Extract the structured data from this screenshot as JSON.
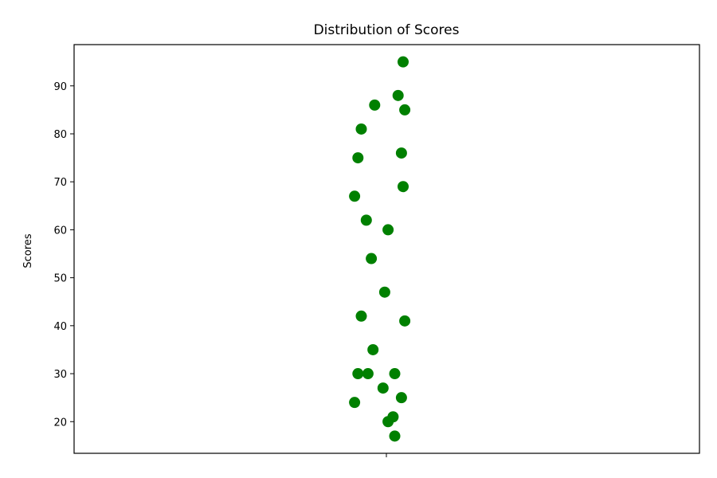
{
  "chart_data": {
    "type": "scatter",
    "title": "Distribution of Scores",
    "xlabel": "",
    "ylabel": "Scores",
    "ylim": [
      13.4,
      98.6
    ],
    "yticks": [
      20,
      30,
      40,
      50,
      60,
      70,
      80,
      90
    ],
    "x_ticks_count": 1,
    "grid": false,
    "legend": "none",
    "marker_color": "#008000",
    "points": [
      {
        "jitter": 0.1,
        "y": 95
      },
      {
        "jitter": 0.07,
        "y": 88
      },
      {
        "jitter": -0.07,
        "y": 86
      },
      {
        "jitter": 0.11,
        "y": 85
      },
      {
        "jitter": -0.15,
        "y": 81
      },
      {
        "jitter": -0.17,
        "y": 75
      },
      {
        "jitter": 0.09,
        "y": 76
      },
      {
        "jitter": 0.1,
        "y": 69
      },
      {
        "jitter": -0.19,
        "y": 67
      },
      {
        "jitter": -0.12,
        "y": 62
      },
      {
        "jitter": 0.01,
        "y": 60
      },
      {
        "jitter": -0.09,
        "y": 54
      },
      {
        "jitter": -0.01,
        "y": 47
      },
      {
        "jitter": -0.15,
        "y": 42
      },
      {
        "jitter": 0.11,
        "y": 41
      },
      {
        "jitter": -0.08,
        "y": 35
      },
      {
        "jitter": -0.17,
        "y": 30
      },
      {
        "jitter": -0.11,
        "y": 30
      },
      {
        "jitter": 0.05,
        "y": 30
      },
      {
        "jitter": -0.02,
        "y": 27
      },
      {
        "jitter": 0.09,
        "y": 25
      },
      {
        "jitter": -0.19,
        "y": 24
      },
      {
        "jitter": 0.04,
        "y": 21
      },
      {
        "jitter": 0.01,
        "y": 20
      },
      {
        "jitter": 0.05,
        "y": 17
      }
    ]
  }
}
